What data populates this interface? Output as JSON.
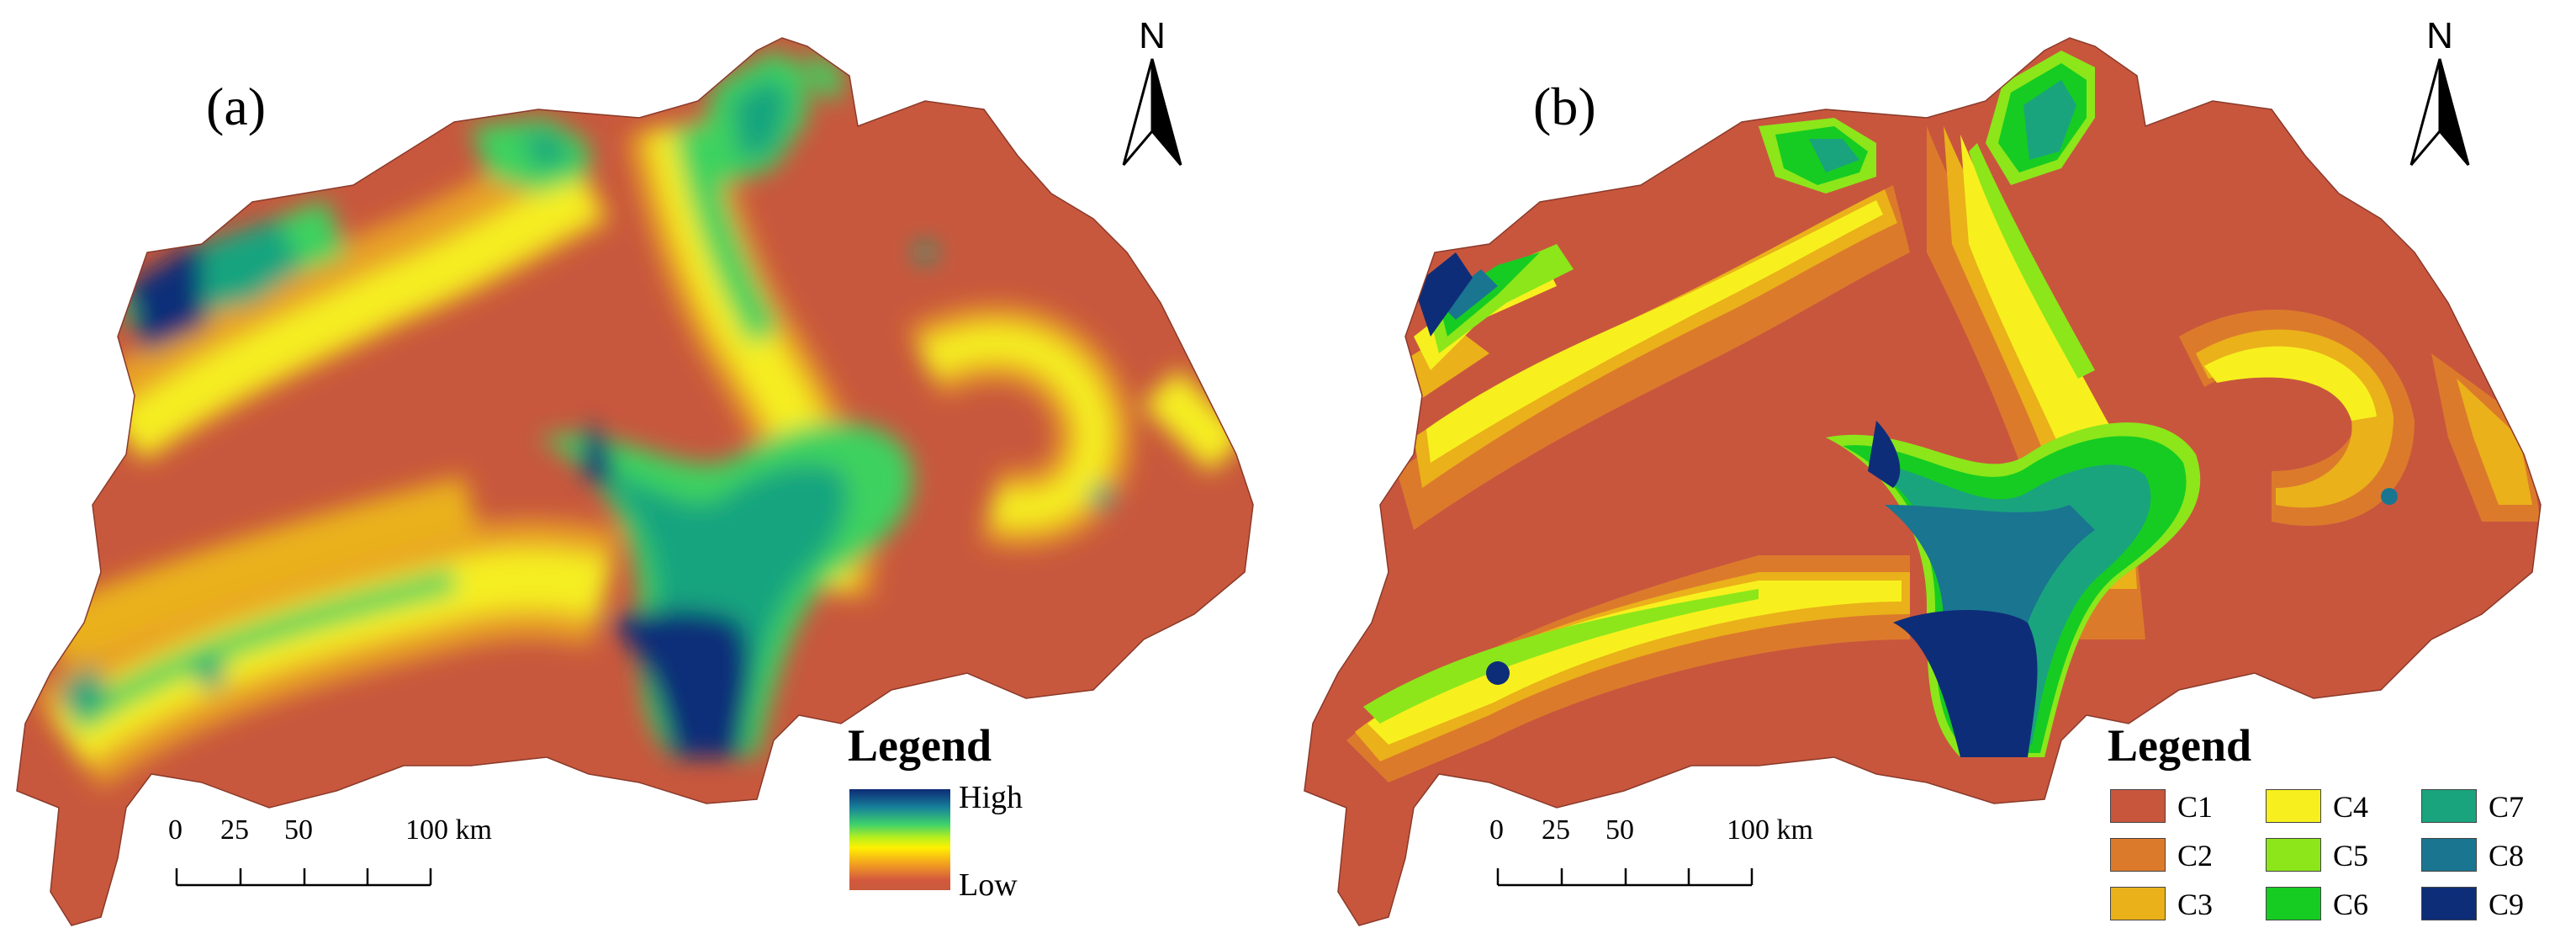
{
  "panels": {
    "a": {
      "label": "(a)",
      "north_label": "N",
      "legend_title": "Legend",
      "legend_high": "High",
      "legend_low": "Low",
      "scale": {
        "ticks": [
          "0",
          "25",
          "50",
          "100 km"
        ]
      }
    },
    "b": {
      "label": "(b)",
      "north_label": "N",
      "legend_title": "Legend",
      "scale": {
        "ticks": [
          "0",
          "25",
          "50",
          "100 km"
        ]
      },
      "classes": [
        {
          "label": "C1",
          "color": "#c8563d"
        },
        {
          "label": "C2",
          "color": "#dc7a2c"
        },
        {
          "label": "C3",
          "color": "#eab11a"
        },
        {
          "label": "C4",
          "color": "#f7f01e"
        },
        {
          "label": "C5",
          "color": "#8ce61a"
        },
        {
          "label": "C6",
          "color": "#16cc22"
        },
        {
          "label": "C7",
          "color": "#19a47e"
        },
        {
          "label": "C8",
          "color": "#1a7590"
        },
        {
          "label": "C9",
          "color": "#0e2d78"
        }
      ]
    }
  },
  "colors": {
    "low": "#c8583d",
    "mid_low": "#e8a025",
    "mid": "#f5ee22",
    "mid_high": "#3ed25e",
    "high": "#0e2d78"
  }
}
